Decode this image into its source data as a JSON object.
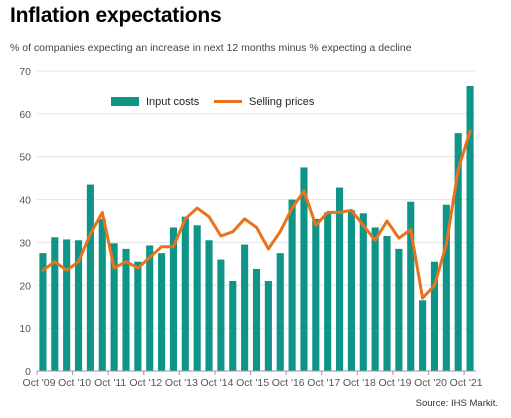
{
  "header": {
    "title": "Inflation expectations",
    "subtitle": "% of companies expecting an increase in next 12 months minus % expecting a decline"
  },
  "footer": {
    "source": "Source: IHS Markit."
  },
  "colors": {
    "bars": "#0f9488",
    "line": "#e8731c",
    "axis": "#c8c8c8"
  },
  "chart_data": {
    "type": "bar",
    "ylim": [
      0,
      70
    ],
    "yticks": [
      "0",
      "10",
      "20",
      "30",
      "40",
      "50",
      "60",
      "70"
    ],
    "x_tick_labels": [
      "Oct '09",
      "Oct '10",
      "Oct '11",
      "Oct '12",
      "Oct '13",
      "Oct '14",
      "Oct '15",
      "Oct '16",
      "Oct '17",
      "Oct '18",
      "Oct '19",
      "Oct '20",
      "Oct '21"
    ],
    "legend_placement": "top-left",
    "series": [
      {
        "name": "Input costs",
        "type": "bar",
        "values": [
          27.5,
          31.2,
          30.7,
          30.5,
          43.5,
          35.5,
          29.8,
          28.5,
          25.5,
          29.3,
          27.5,
          33.5,
          36.0,
          34.0,
          30.5,
          26.0,
          21.0,
          29.5,
          23.8,
          21.0,
          27.5,
          40.0,
          47.5,
          35.5,
          37.0,
          42.8,
          37.5,
          36.8,
          33.5,
          31.5,
          28.5,
          39.5,
          16.5,
          25.5,
          38.8,
          55.5,
          66.5
        ]
      },
      {
        "name": "Selling prices",
        "type": "line",
        "values": [
          23.5,
          25.5,
          23.5,
          25.5,
          32.0,
          37.0,
          24.0,
          25.5,
          24.0,
          26.5,
          29.0,
          29.0,
          35.5,
          38.0,
          36.0,
          31.5,
          32.5,
          35.5,
          33.5,
          28.5,
          32.5,
          38.0,
          42.0,
          34.0,
          37.0,
          37.0,
          37.5,
          34.0,
          30.5,
          35.0,
          31.0,
          33.0,
          17.0,
          20.0,
          29.5,
          47.0,
          56.0
        ]
      }
    ]
  }
}
